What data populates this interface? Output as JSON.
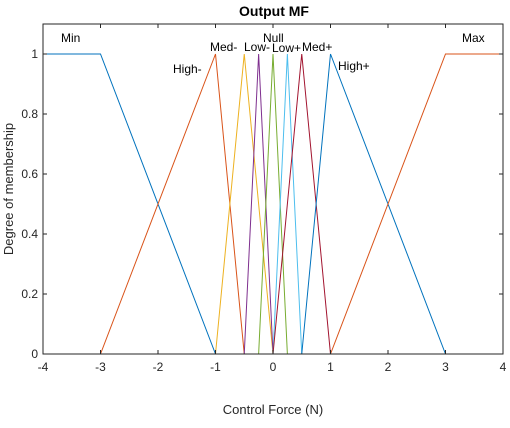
{
  "chart_data": {
    "type": "line",
    "title": "Output MF",
    "xlabel": "Control Force (N)",
    "ylabel": "Degree of membership",
    "xlim": [
      -4,
      4
    ],
    "ylim": [
      0,
      1.1
    ],
    "xticks": [
      "-4",
      "-3",
      "-2",
      "-1",
      "0",
      "1",
      "2",
      "3",
      "4"
    ],
    "yticks": [
      "0",
      "0.2",
      "0.4",
      "0.6",
      "0.8",
      "1"
    ],
    "grid": false,
    "series": [
      {
        "name": "Min",
        "color": "#0072BD",
        "x": [
          -4,
          -3,
          -1,
          4
        ],
        "y": [
          1,
          1,
          0,
          0
        ]
      },
      {
        "name": "High-",
        "color": "#D95319",
        "x": [
          -4,
          -3,
          -1,
          -0.5,
          4
        ],
        "y": [
          0,
          0,
          1,
          0,
          0
        ]
      },
      {
        "name": "Med-",
        "color": "#EDB120",
        "x": [
          -4,
          -1,
          -0.5,
          0,
          4
        ],
        "y": [
          0,
          0,
          1,
          0,
          0
        ]
      },
      {
        "name": "Low-",
        "color": "#7E2F8E",
        "x": [
          -4,
          -0.5,
          -0.25,
          0,
          4
        ],
        "y": [
          0,
          0,
          1,
          0,
          0
        ]
      },
      {
        "name": "Null",
        "color": "#77AC30",
        "x": [
          -4,
          -0.25,
          0,
          0.25,
          4
        ],
        "y": [
          0,
          0,
          1,
          0,
          0
        ]
      },
      {
        "name": "Low+",
        "color": "#4DBEEE",
        "x": [
          -4,
          0,
          0.25,
          0.5,
          4
        ],
        "y": [
          0,
          0,
          1,
          0,
          0
        ]
      },
      {
        "name": "Med+",
        "color": "#A2142F",
        "x": [
          -4,
          0,
          0.5,
          1,
          4
        ],
        "y": [
          0,
          0,
          1,
          0,
          0
        ]
      },
      {
        "name": "High+",
        "color": "#0072BD",
        "x": [
          -4,
          0.5,
          1,
          3,
          4
        ],
        "y": [
          0,
          0,
          1,
          0,
          0
        ]
      },
      {
        "name": "Max",
        "color": "#D95319",
        "x": [
          -4,
          1,
          3,
          4
        ],
        "y": [
          0,
          0,
          1,
          1
        ]
      }
    ]
  }
}
